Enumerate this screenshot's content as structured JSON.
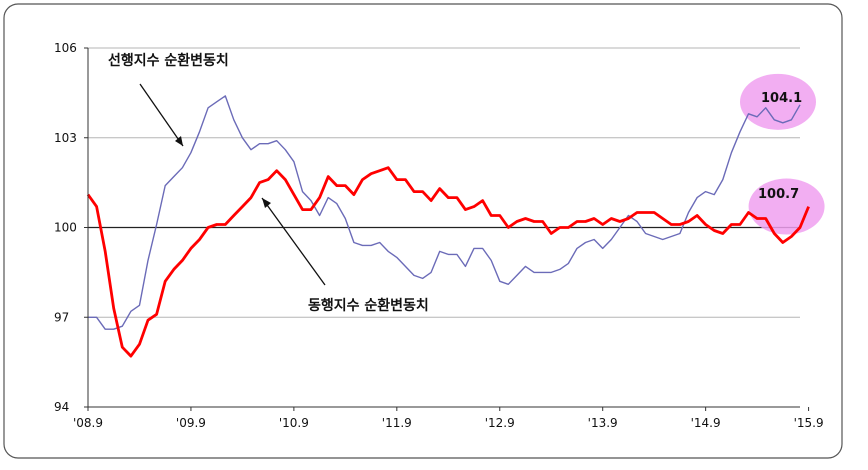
{
  "chart_data": {
    "type": "line",
    "title": "",
    "xlabel": "",
    "ylabel": "",
    "ylim": [
      94,
      106
    ],
    "y_ticks": [
      "106",
      "103",
      "100",
      "97",
      "94"
    ],
    "x_ticks": [
      "'08.9",
      "'09.9",
      "'10.9",
      "'11.9",
      "'12.9",
      "'13.9",
      "'14.9",
      "'15.9"
    ],
    "x_range": [
      "2008-09",
      "2015-09"
    ],
    "reference_line": 100,
    "grid": "horizontal",
    "series": [
      {
        "name": "선행지수 순환변동치",
        "color": "#6b6bb8",
        "values": [
          97.0,
          97.0,
          96.6,
          96.6,
          96.7,
          97.2,
          97.4,
          98.9,
          100.1,
          101.4,
          101.7,
          102.0,
          102.5,
          103.2,
          104.0,
          104.2,
          104.4,
          103.6,
          103.0,
          102.6,
          102.8,
          102.8,
          102.9,
          102.6,
          102.2,
          101.2,
          100.9,
          100.4,
          101.0,
          100.8,
          100.3,
          99.5,
          99.4,
          99.4,
          99.5,
          99.2,
          99.0,
          98.7,
          98.4,
          98.3,
          98.5,
          99.2,
          99.1,
          99.1,
          98.7,
          99.3,
          99.3,
          98.9,
          98.2,
          98.1,
          98.4,
          98.7,
          98.5,
          98.5,
          98.5,
          98.6,
          98.8,
          99.3,
          99.5,
          99.6,
          99.3,
          99.6,
          100.0,
          100.4,
          100.2,
          99.8,
          99.7,
          99.6,
          99.7,
          99.8,
          100.5,
          101.0,
          101.2,
          101.1,
          101.6,
          102.5,
          103.2,
          103.8,
          103.7,
          104.0,
          103.6,
          103.5,
          103.6,
          104.1
        ],
        "end_label": "104.1"
      },
      {
        "name": "동행지수 순환변동치",
        "color": "#ff0000",
        "values": [
          101.1,
          100.7,
          99.2,
          97.3,
          96.0,
          95.7,
          96.1,
          96.9,
          97.1,
          98.2,
          98.6,
          98.9,
          99.3,
          99.6,
          100.0,
          100.1,
          100.1,
          100.4,
          100.7,
          101.0,
          101.5,
          101.6,
          101.9,
          101.6,
          101.1,
          100.6,
          100.6,
          101.0,
          101.7,
          101.4,
          101.4,
          101.1,
          101.6,
          101.8,
          101.9,
          102.0,
          101.6,
          101.6,
          101.2,
          101.2,
          100.9,
          101.3,
          101.0,
          101.0,
          100.6,
          100.7,
          100.9,
          100.4,
          100.4,
          100.0,
          100.2,
          100.3,
          100.2,
          100.2,
          99.8,
          100.0,
          100.0,
          100.2,
          100.2,
          100.3,
          100.1,
          100.3,
          100.2,
          100.3,
          100.5,
          100.5,
          100.5,
          100.3,
          100.1,
          100.1,
          100.2,
          100.4,
          100.1,
          99.9,
          99.8,
          100.1,
          100.1,
          100.5,
          100.3,
          100.3,
          99.8,
          99.5,
          99.7,
          100.0,
          100.7
        ],
        "end_label": "100.7"
      }
    ],
    "annotations": [
      {
        "text": "선행지수 순환변동치",
        "series": 0
      },
      {
        "text": "동행지수 순환변동치",
        "series": 1
      }
    ],
    "highlight_color": "#f0a0f0"
  }
}
